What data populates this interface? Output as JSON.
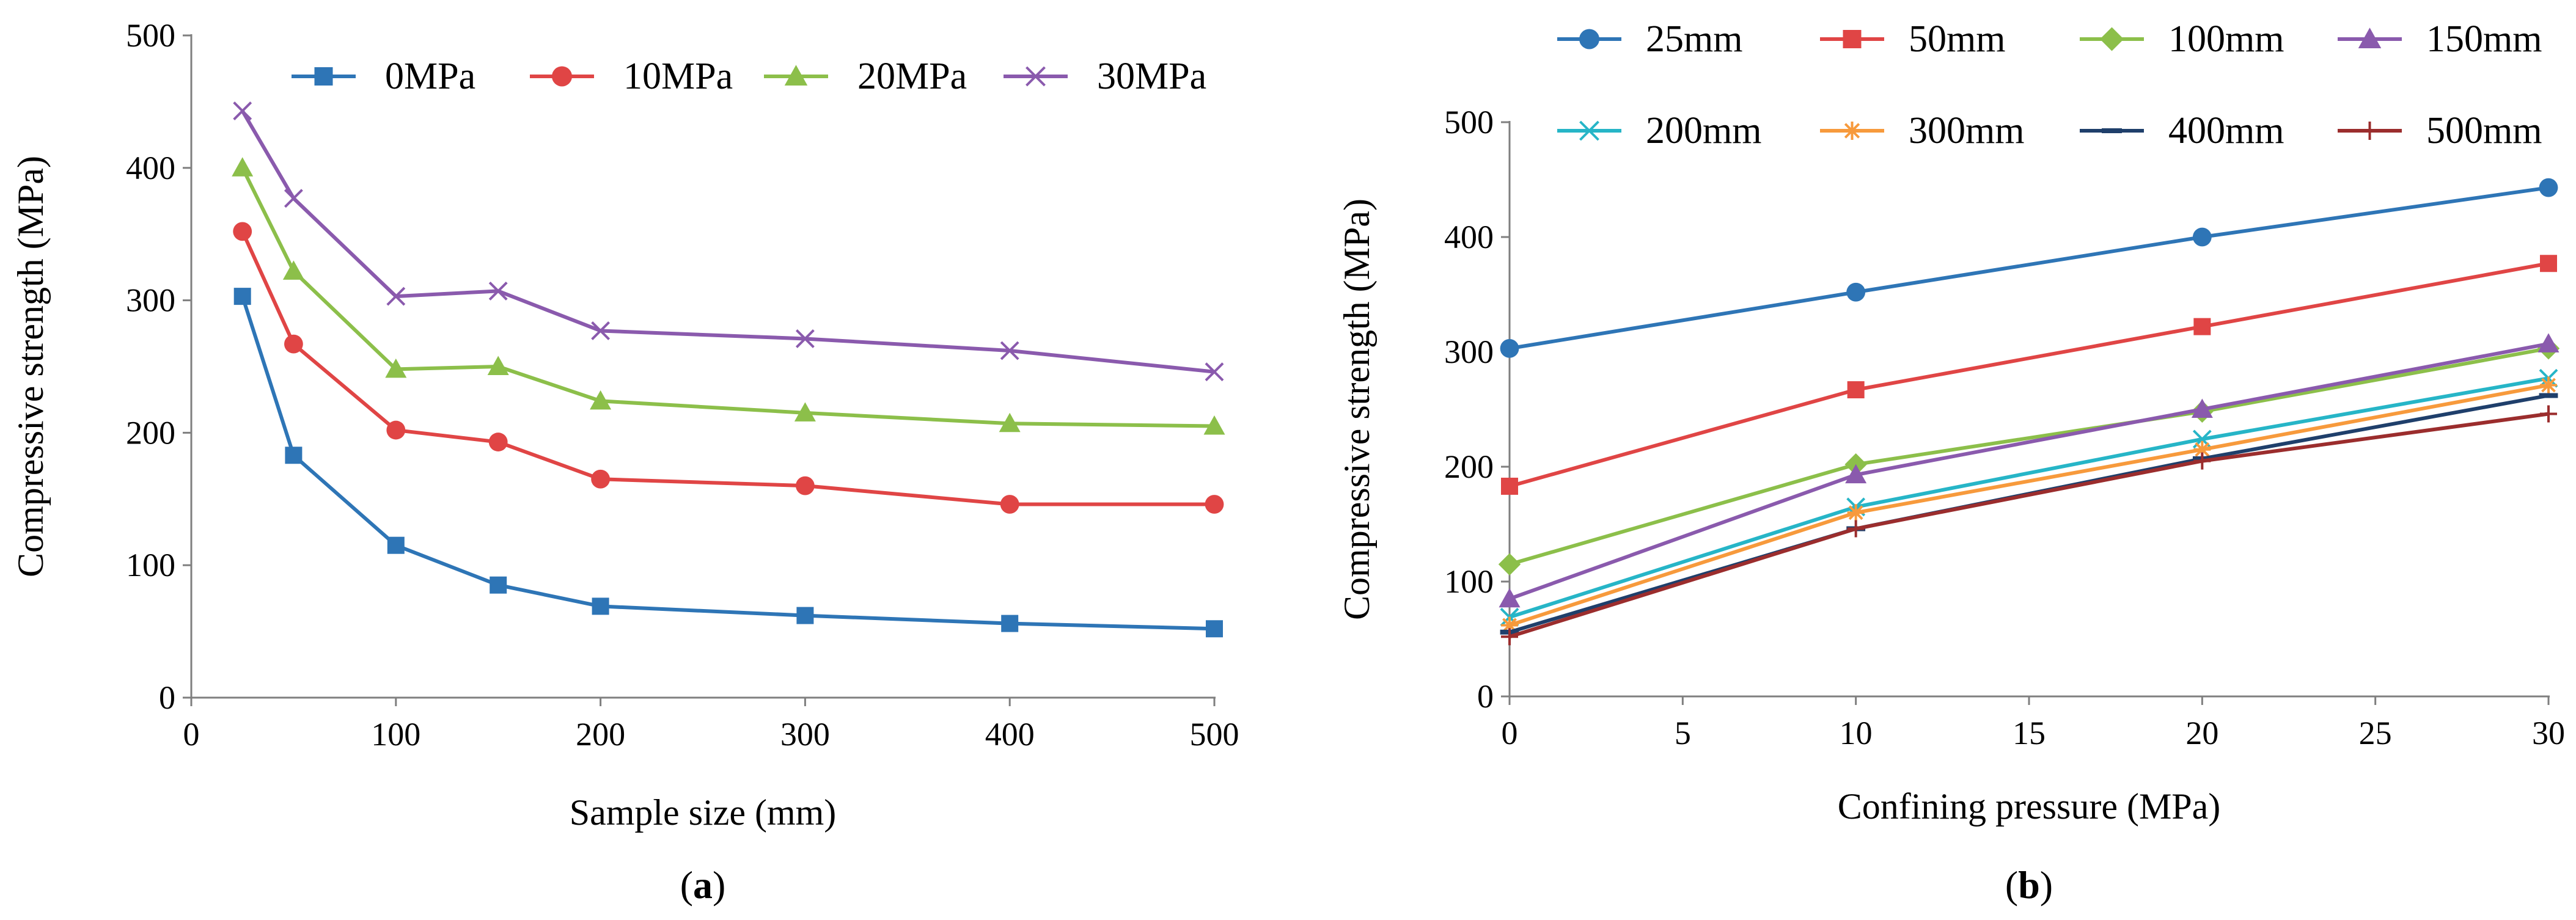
{
  "chart_data": [
    {
      "type": "line",
      "panel_label": "(a)",
      "panel_letter": "a",
      "xlabel": "Sample size (mm)",
      "ylabel": "Compressive strength (MPa)",
      "xlim": [
        0,
        500
      ],
      "ylim": [
        0,
        500
      ],
      "xticks": [
        0,
        100,
        200,
        300,
        400,
        500
      ],
      "yticks": [
        0,
        100,
        200,
        300,
        400,
        500
      ],
      "x": [
        25,
        50,
        100,
        150,
        200,
        300,
        400,
        500
      ],
      "series": [
        {
          "name": "0MPa",
          "color": "#2e75b6",
          "marker": "square",
          "values": [
            303,
            183,
            115,
            85,
            69,
            62,
            56,
            52
          ]
        },
        {
          "name": "10MPa",
          "color": "#e04545",
          "marker": "circle",
          "values": [
            352,
            267,
            202,
            193,
            165,
            160,
            146,
            146
          ]
        },
        {
          "name": "20MPa",
          "color": "#8cbf4a",
          "marker": "triangle",
          "values": [
            400,
            322,
            248,
            250,
            224,
            215,
            207,
            205
          ]
        },
        {
          "name": "30MPa",
          "color": "#8a5aad",
          "marker": "x",
          "values": [
            443,
            377,
            303,
            307,
            277,
            271,
            262,
            246
          ]
        }
      ]
    },
    {
      "type": "line",
      "panel_label": "(b)",
      "panel_letter": "b",
      "xlabel": "Confining pressure (MPa)",
      "ylabel": "Compressive strength (MPa)",
      "xlim": [
        0,
        30
      ],
      "ylim": [
        0,
        500
      ],
      "xticks": [
        0,
        5,
        10,
        15,
        20,
        25,
        30
      ],
      "yticks": [
        0,
        100,
        200,
        300,
        400,
        500
      ],
      "x": [
        0,
        10,
        20,
        30
      ],
      "series": [
        {
          "name": "25mm",
          "color": "#2e75b6",
          "marker": "circle",
          "values": [
            303,
            352,
            400,
            443
          ]
        },
        {
          "name": "50mm",
          "color": "#e04545",
          "marker": "square",
          "values": [
            183,
            267,
            322,
            377
          ]
        },
        {
          "name": "100mm",
          "color": "#8cbf4a",
          "marker": "diamond",
          "values": [
            115,
            202,
            248,
            303
          ]
        },
        {
          "name": "150mm",
          "color": "#8a5aad",
          "marker": "triangle",
          "values": [
            85,
            193,
            250,
            307
          ]
        },
        {
          "name": "200mm",
          "color": "#26b5c7",
          "marker": "x",
          "values": [
            69,
            165,
            224,
            277
          ]
        },
        {
          "name": "300mm",
          "color": "#f79a3c",
          "marker": "star",
          "values": [
            62,
            160,
            215,
            271
          ]
        },
        {
          "name": "400mm",
          "color": "#1f3f6b",
          "marker": "dash",
          "values": [
            56,
            146,
            207,
            262
          ]
        },
        {
          "name": "500mm",
          "color": "#9b2d2d",
          "marker": "plus",
          "values": [
            52,
            146,
            205,
            246
          ]
        }
      ]
    }
  ]
}
